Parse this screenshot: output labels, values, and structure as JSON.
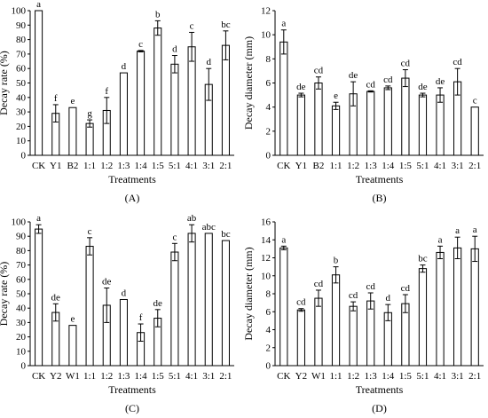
{
  "chart_data": [
    {
      "type": "bar",
      "panel_label": "(A)",
      "xlabel": "Treatments",
      "ylabel": "Decay rate (%)",
      "ylim": [
        0,
        100
      ],
      "yticks": [
        0,
        10,
        20,
        30,
        40,
        50,
        60,
        70,
        80,
        90,
        100
      ],
      "categories": [
        "CK",
        "Y1",
        "B2",
        "1:1",
        "1:2",
        "1:3",
        "1:4",
        "1:5",
        "5:1",
        "4:1",
        "3:1",
        "2:1"
      ],
      "values": [
        100,
        29,
        33,
        22,
        31,
        57,
        72,
        88,
        63,
        75,
        49,
        76
      ],
      "errors": [
        0,
        6,
        0,
        2.5,
        9,
        0,
        0.5,
        5,
        6,
        10,
        11,
        10
      ],
      "letters": [
        "a",
        "f",
        "e",
        "g",
        "f",
        "d",
        "c",
        "b",
        "d",
        "c",
        "d",
        "bc"
      ],
      "grid": false
    },
    {
      "type": "bar",
      "panel_label": "(B)",
      "xlabel": "Treatments",
      "ylabel": "Decay diameter (mm)",
      "ylim": [
        0,
        12
      ],
      "yticks": [
        0,
        2,
        4,
        6,
        8,
        10,
        12
      ],
      "categories": [
        "CK",
        "Y1",
        "B2",
        "1:1",
        "1:2",
        "1:3",
        "1:4",
        "1:5",
        "5:1",
        "4:1",
        "3:1",
        "2:1"
      ],
      "values": [
        9.4,
        5.0,
        6.0,
        4.1,
        5.1,
        5.3,
        5.6,
        6.4,
        5.0,
        5.0,
        6.1,
        4.0
      ],
      "errors": [
        1.0,
        0.15,
        0.5,
        0.3,
        1.0,
        0.05,
        0.15,
        0.7,
        0.15,
        0.6,
        1.1,
        0
      ],
      "letters": [
        "a",
        "de",
        "cd",
        "e",
        "de",
        "cd",
        "cd",
        "cd",
        "de",
        "de",
        "cd",
        "c"
      ],
      "grid": false
    },
    {
      "type": "bar",
      "panel_label": "(C)",
      "xlabel": "Treatments",
      "ylabel": "Decay rate (%)",
      "ylim": [
        0,
        100
      ],
      "yticks": [
        0,
        10,
        20,
        30,
        40,
        50,
        60,
        70,
        80,
        90,
        100
      ],
      "categories": [
        "CK",
        "Y2",
        "W1",
        "1:1",
        "1:2",
        "1:3",
        "1:4",
        "1:5",
        "5:1",
        "4:1",
        "3:1",
        "2:1"
      ],
      "values": [
        95,
        37,
        28,
        83,
        42,
        46,
        23,
        33,
        79,
        92,
        92,
        87
      ],
      "errors": [
        3,
        6,
        0,
        6,
        12,
        0,
        6,
        6,
        6,
        6,
        0,
        0
      ],
      "letters": [
        "a",
        "de",
        "e",
        "c",
        "de",
        "d",
        "f",
        "de",
        "c",
        "ab",
        "abc",
        "bc"
      ],
      "grid": false
    },
    {
      "type": "bar",
      "panel_label": "(D)",
      "xlabel": "Treatments",
      "ylabel": "Decay diameter (mm)",
      "ylim": [
        0,
        16
      ],
      "yticks": [
        0,
        2,
        4,
        6,
        8,
        10,
        12,
        14,
        16
      ],
      "categories": [
        "CK",
        "Y2",
        "W1",
        "1:1",
        "1:2",
        "1:3",
        "1:4",
        "1:5",
        "5:1",
        "4:1",
        "3:1",
        "2:1"
      ],
      "values": [
        13.1,
        6.2,
        7.5,
        10.1,
        6.6,
        7.2,
        5.9,
        6.9,
        10.8,
        12.6,
        13.1,
        13.0
      ],
      "errors": [
        0.2,
        0.15,
        0.9,
        0.9,
        0.5,
        0.9,
        0.9,
        1.0,
        0.4,
        0.7,
        1.2,
        1.4
      ],
      "letters": [
        "a",
        "cd",
        "cd",
        "b",
        "cd",
        "cd",
        "d",
        "cd",
        "bc",
        "a",
        "a",
        "a"
      ],
      "grid": false
    }
  ]
}
